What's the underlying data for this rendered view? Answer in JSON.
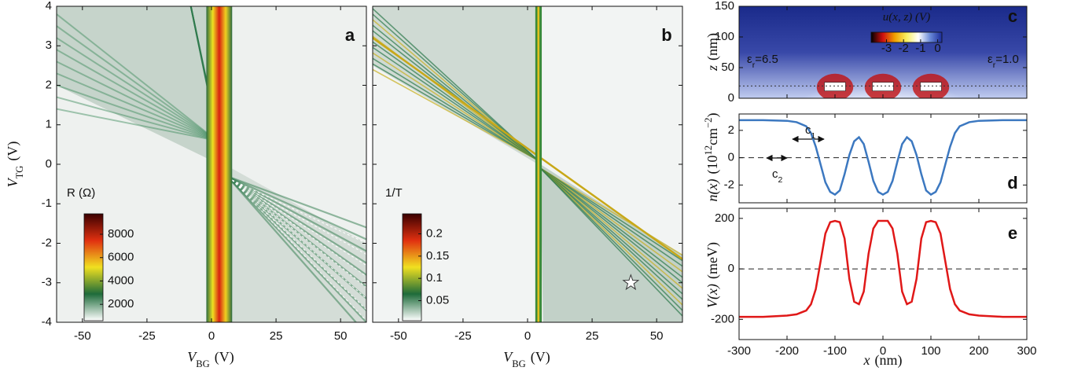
{
  "chart_data": [
    {
      "type": "heatmap",
      "label": "a",
      "x_label": {
        "symbol": "V",
        "subscript": "BG",
        "unit": "(V)"
      },
      "y_label": {
        "symbol": "V",
        "subscript": "TG",
        "unit": "(V)"
      },
      "xlim": [
        -60,
        60
      ],
      "xticks": [
        -50,
        -25,
        0,
        25,
        50
      ],
      "ylim": [
        -4,
        4
      ],
      "yticks": [
        -4,
        -3,
        -2,
        -1,
        0,
        1,
        2,
        3,
        4
      ],
      "colorbar": {
        "label": "R (Ω)",
        "lim": [
          600,
          9750
        ],
        "ticks": [
          2000,
          4000,
          6000,
          8000
        ],
        "colors": [
          "#ffffff",
          "#1e6b3a",
          "#f0e020",
          "#e03010",
          "#3a0000"
        ]
      }
    },
    {
      "type": "heatmap",
      "label": "b",
      "x_label": {
        "symbol": "V",
        "subscript": "BG",
        "unit": "(V)"
      },
      "xlim": [
        -60,
        60
      ],
      "xticks": [
        -50,
        -25,
        0,
        25,
        50
      ],
      "ylim": [
        -4,
        4
      ],
      "yticks": [
        -4,
        -3,
        -2,
        -1,
        0,
        1,
        2,
        3,
        4
      ],
      "ytick_labels": false,
      "colorbar": {
        "label": "1/T",
        "lim": [
          0.005,
          0.245
        ],
        "ticks": [
          0.05,
          0.1,
          0.15,
          0.2
        ],
        "colors": [
          "#ffffff",
          "#1e6b3a",
          "#f0e020",
          "#e03010",
          "#3a0000"
        ]
      },
      "star": {
        "x": 40,
        "y": -3
      }
    },
    {
      "type": "heatmap",
      "label": "c",
      "y_label": {
        "symbol": "z",
        "unit": "(nm)"
      },
      "xlim": [
        -300,
        300
      ],
      "xticks": [
        -300,
        -200,
        -100,
        0,
        100,
        200,
        300
      ],
      "xtick_labels": false,
      "ylim": [
        0,
        150
      ],
      "yticks": [
        0,
        50,
        100,
        150
      ],
      "dotted_line_z": 20,
      "left_note": {
        "symbol": "ε",
        "subscript": "r",
        "text": "=6.5"
      },
      "right_note": {
        "symbol": "ε",
        "subscript": "r",
        "text": "=1.0"
      },
      "colorbar": {
        "label": "u(x, z) (V)",
        "lim": [
          -3.9,
          0.25
        ],
        "ticks": [
          -3,
          -2,
          -1,
          0
        ],
        "colors": [
          "#000000",
          "#d01010",
          "#f0a000",
          "#f8f060",
          "#ffffff",
          "#6a8ad8",
          "#1a2a9a"
        ]
      }
    },
    {
      "type": "line",
      "label": "d",
      "y_label": {
        "symbol": "n(x)",
        "unit_parts": [
          "(10",
          "12",
          "cm",
          "−2",
          ")"
        ]
      },
      "xlim": [
        -300,
        300
      ],
      "xticks": [
        -300,
        -200,
        -100,
        0,
        100,
        200,
        300
      ],
      "xtick_labels": false,
      "ylim": [
        -3.3,
        3.2
      ],
      "yticks": [
        -2,
        0,
        2
      ],
      "zero_line": true,
      "notes": [
        {
          "symbol": "c",
          "subscript": "1"
        },
        {
          "symbol": "c",
          "subscript": "2"
        }
      ],
      "x": [
        -300,
        -250,
        -200,
        -180,
        -160,
        -150,
        -140,
        -130,
        -120,
        -110,
        -100,
        -90,
        -80,
        -70,
        -60,
        -50,
        -40,
        -30,
        -20,
        -10,
        0,
        10,
        20,
        30,
        40,
        50,
        60,
        70,
        80,
        90,
        100,
        110,
        120,
        130,
        140,
        150,
        160,
        180,
        200,
        250,
        300
      ],
      "series": [
        {
          "name": "n(x)",
          "color": "#3c78c0",
          "values": [
            2.75,
            2.75,
            2.7,
            2.6,
            2.3,
            1.8,
            0.8,
            -0.5,
            -1.8,
            -2.5,
            -2.7,
            -2.4,
            -1.2,
            0.2,
            1.2,
            1.5,
            1.0,
            -0.3,
            -1.7,
            -2.5,
            -2.7,
            -2.5,
            -1.7,
            -0.3,
            1.0,
            1.5,
            1.2,
            0.2,
            -1.2,
            -2.4,
            -2.7,
            -2.5,
            -1.8,
            -0.5,
            0.8,
            1.8,
            2.3,
            2.6,
            2.7,
            2.75,
            2.75
          ]
        }
      ]
    },
    {
      "type": "line",
      "label": "e",
      "x_label": {
        "symbol": "x",
        "unit": "(nm)"
      },
      "y_label": {
        "symbol": "V(x)",
        "unit": "(meV)"
      },
      "xlim": [
        -300,
        300
      ],
      "xticks": [
        -300,
        -200,
        -100,
        0,
        100,
        200,
        300
      ],
      "ylim": [
        -280,
        240
      ],
      "yticks": [
        -200,
        0,
        200
      ],
      "zero_line": true,
      "x": [
        -300,
        -250,
        -200,
        -180,
        -160,
        -150,
        -140,
        -130,
        -120,
        -110,
        -100,
        -90,
        -80,
        -70,
        -60,
        -50,
        -40,
        -30,
        -20,
        -10,
        0,
        10,
        20,
        30,
        40,
        50,
        60,
        70,
        80,
        90,
        100,
        110,
        120,
        130,
        140,
        150,
        160,
        180,
        200,
        250,
        300
      ],
      "series": [
        {
          "name": "V(x)",
          "color": "#e01818",
          "values": [
            -190,
            -190,
            -185,
            -180,
            -165,
            -140,
            -80,
            30,
            140,
            185,
            190,
            185,
            120,
            -40,
            -130,
            -140,
            -90,
            60,
            160,
            190,
            190,
            190,
            160,
            60,
            -90,
            -140,
            -130,
            -40,
            120,
            185,
            190,
            185,
            140,
            30,
            -80,
            -140,
            -165,
            -180,
            -185,
            -190,
            -190
          ]
        }
      ]
    }
  ]
}
